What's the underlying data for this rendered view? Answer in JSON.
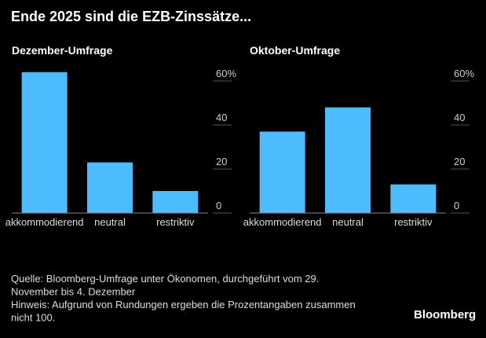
{
  "title": "Ende 2025 sind die EZB-Zinssätze...",
  "chart_data": [
    {
      "type": "bar",
      "title": "Dezember-Umfrage",
      "categories": [
        "akkommodierend",
        "neutral",
        "restriktiv"
      ],
      "values": [
        64,
        23,
        10
      ],
      "color": "#4cbcff",
      "ylim": [
        0,
        65
      ],
      "yticks": [
        0,
        20,
        40,
        {
          "value": 60,
          "label": "60%"
        }
      ]
    },
    {
      "type": "bar",
      "title": "Oktober-Umfrage",
      "categories": [
        "akkommodierend",
        "neutral",
        "restriktiv"
      ],
      "values": [
        37,
        48,
        13
      ],
      "color": "#4cbcff",
      "ylim": [
        0,
        65
      ],
      "yticks": [
        0,
        20,
        40,
        {
          "value": 60,
          "label": "60%"
        }
      ]
    }
  ],
  "notes": [
    "Quelle: Bloomberg-Umfrage unter Ökonomen, durchgeführt vom 29.",
    "November bis 4. Dezember",
    "Hinweis: Aufgrund von Rundungen ergeben die Prozentangaben zusammen",
    "nicht 100."
  ],
  "brand": "Bloomberg"
}
